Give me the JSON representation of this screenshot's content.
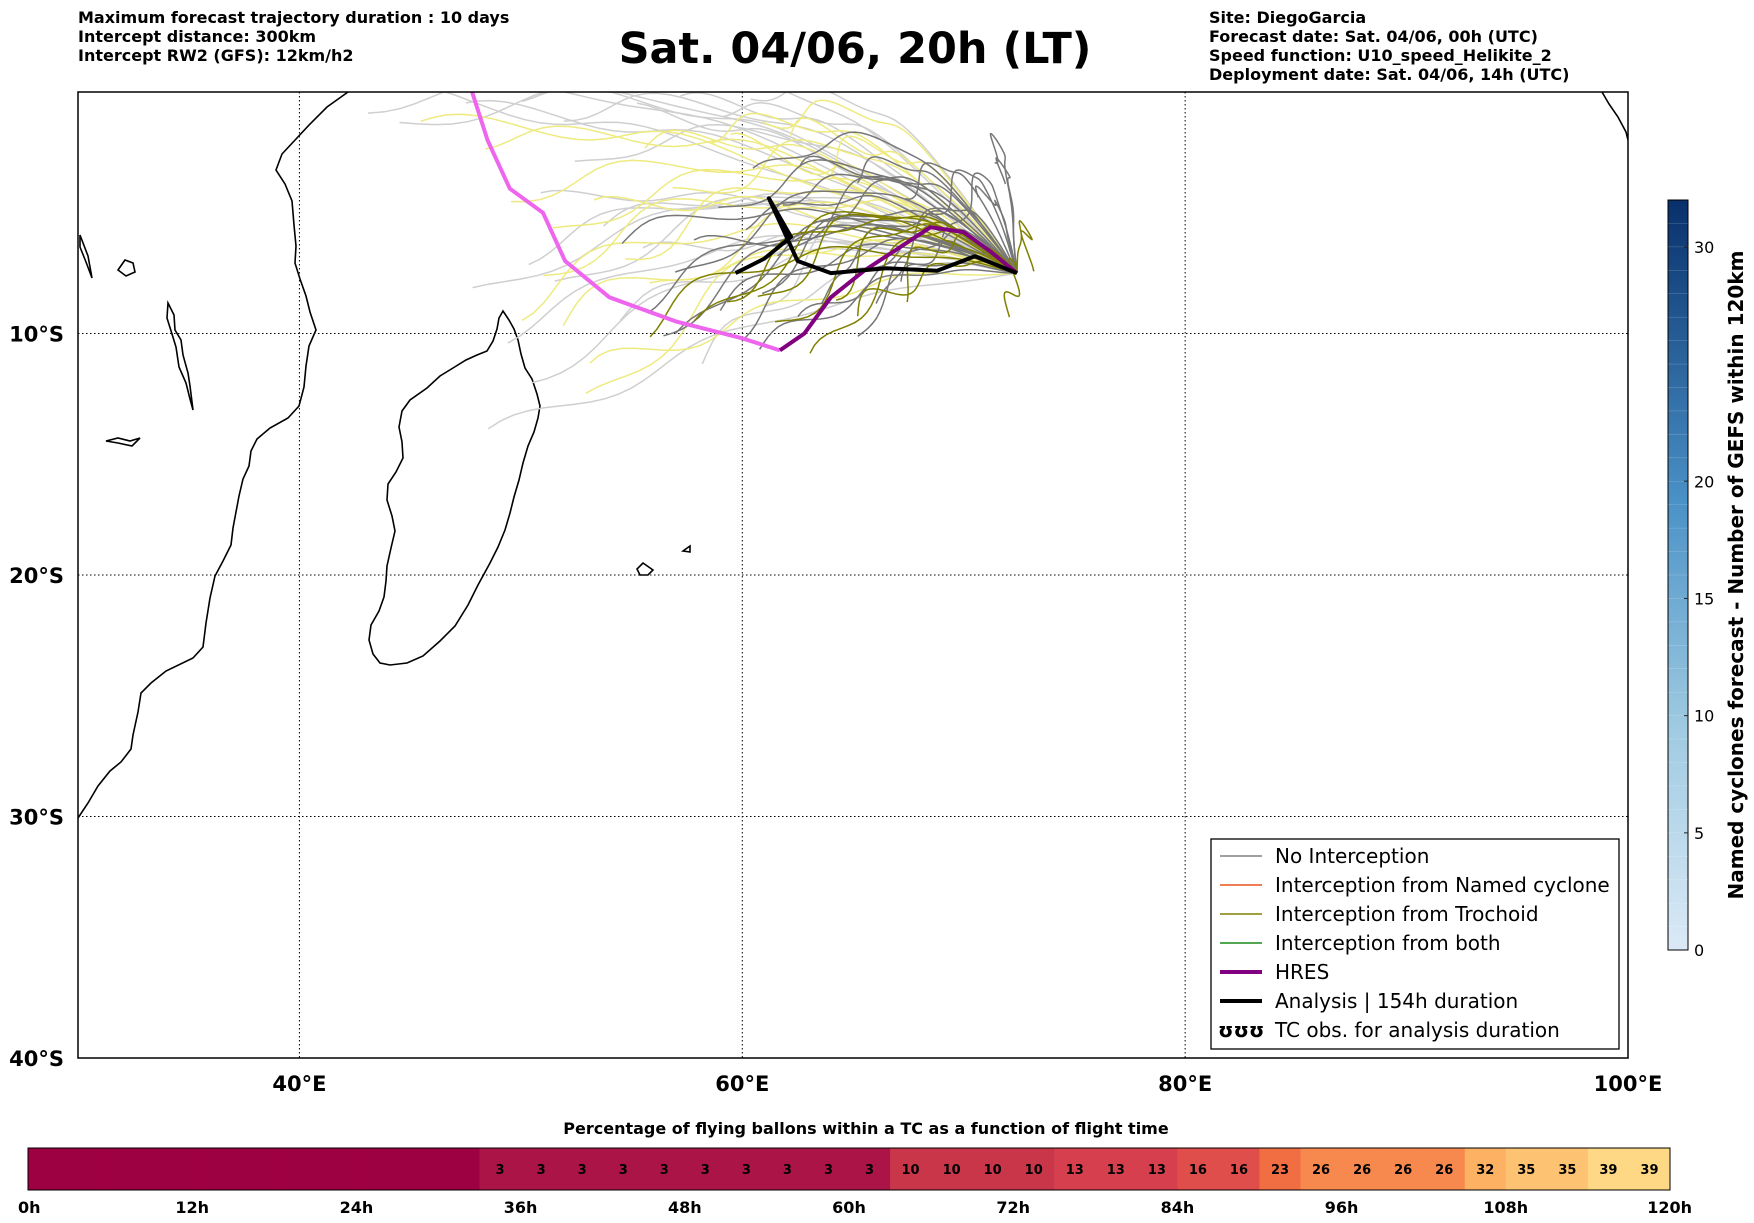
{
  "header": {
    "left": [
      "Maximum forecast trajectory duration : 10 days",
      "Intercept distance: 300km",
      "Intercept RW2 (GFS):  12km/h2"
    ],
    "title": "Sat. 04/06, 20h (LT)",
    "right": [
      "Site: DiegoGarcia",
      "Forecast date: Sat. 04/06, 00h (UTC)",
      "Speed function: U10_speed_Helikite_2",
      "Deployment date: Sat. 04/06, 14h (UTC)"
    ]
  },
  "chart_data": {
    "type": "map",
    "lon_range": [
      30,
      100
    ],
    "lat_range": [
      -40,
      0
    ],
    "x_ticks": [
      {
        "lon": 40,
        "label": "40°E"
      },
      {
        "lon": 60,
        "label": "60°E"
      },
      {
        "lon": 80,
        "label": "80°E"
      },
      {
        "lon": 100,
        "label": "100°E"
      }
    ],
    "y_ticks": [
      {
        "lat": -10,
        "label": "10°S"
      },
      {
        "lat": -20,
        "label": "20°S"
      },
      {
        "lat": -30,
        "label": "30°S"
      },
      {
        "lat": -40,
        "label": "40°S"
      }
    ],
    "grid": true,
    "legend": {
      "placement": "lower-right",
      "entries": [
        {
          "label": "No Interception",
          "color": "#808080",
          "style": "thin"
        },
        {
          "label": "Interception from Named cyclone",
          "color": "#e8531b",
          "style": "thin"
        },
        {
          "label": "Interception from Trochoid",
          "color": "#808000",
          "style": "thin"
        },
        {
          "label": "Interception from both",
          "color": "#1a8a1a",
          "style": "thin"
        },
        {
          "label": "HRES",
          "color": "#800080",
          "style": "thick"
        },
        {
          "label": "Analysis | 154h duration",
          "color": "#000000",
          "style": "thick"
        },
        {
          "label": "TC obs. for analysis duration",
          "color": "#000000",
          "style": "symbol"
        }
      ]
    },
    "hres_track": {
      "color_plotted": "#800080",
      "color_extension": "#ee66ee",
      "points_lonlat": [
        [
          72.4,
          -7.5
        ],
        [
          71.2,
          -6.6
        ],
        [
          70,
          -5.8
        ],
        [
          68.5,
          -5.6
        ],
        [
          67,
          -6.5
        ],
        [
          65.5,
          -7.4
        ],
        [
          64,
          -8.5
        ],
        [
          62.8,
          -10
        ],
        [
          61.7,
          -10.7
        ],
        [
          60,
          -10.2
        ],
        [
          57,
          -9.5
        ],
        [
          54,
          -8.5
        ],
        [
          52,
          -7
        ],
        [
          51,
          -5
        ],
        [
          49.5,
          -4
        ],
        [
          48.5,
          -2
        ],
        [
          47.8,
          0
        ]
      ]
    },
    "analysis_track": {
      "color": "#000000",
      "points_lonlat": [
        [
          72.4,
          -7.5
        ],
        [
          70.5,
          -6.8
        ],
        [
          68.8,
          -7.4
        ],
        [
          66.5,
          -7.3
        ],
        [
          64,
          -7.5
        ],
        [
          62.5,
          -7.0
        ],
        [
          61.2,
          -4.4
        ],
        [
          62.2,
          -6.0
        ],
        [
          61,
          -6.9
        ],
        [
          59.7,
          -7.5
        ]
      ]
    },
    "ensemble_tracks": {
      "no_interception_color": "#777777",
      "trochoid_color": "#808000",
      "far_color": "#cfcfcf",
      "yellow_color": "#eeea80"
    },
    "cyclone_colorbar": {
      "label": "Named cyclones forecast - Number of GEFS within 120km",
      "range": [
        0,
        32
      ],
      "ticks": [
        0,
        5,
        10,
        15,
        20,
        30
      ]
    }
  },
  "bottom_bar": {
    "title": "Percentage of flying ballons within a TC as a function of flight time",
    "cells": [
      {
        "pct": null,
        "color": "#9e0142"
      },
      {
        "pct": null,
        "color": "#9e0142"
      },
      {
        "pct": null,
        "color": "#9e0142"
      },
      {
        "pct": null,
        "color": "#9e0142"
      },
      {
        "pct": null,
        "color": "#9e0142"
      },
      {
        "pct": null,
        "color": "#9e0142"
      },
      {
        "pct": null,
        "color": "#9e0142"
      },
      {
        "pct": null,
        "color": "#9e0142"
      },
      {
        "pct": null,
        "color": "#9e0142"
      },
      {
        "pct": null,
        "color": "#9e0142"
      },
      {
        "pct": null,
        "color": "#9e0142"
      },
      {
        "pct": "3",
        "color": "#ab1446"
      },
      {
        "pct": "3",
        "color": "#ab1446"
      },
      {
        "pct": "3",
        "color": "#ab1446"
      },
      {
        "pct": "3",
        "color": "#ab1446"
      },
      {
        "pct": "3",
        "color": "#ab1446"
      },
      {
        "pct": "3",
        "color": "#ab1446"
      },
      {
        "pct": "3",
        "color": "#ab1446"
      },
      {
        "pct": "3",
        "color": "#ab1446"
      },
      {
        "pct": "3",
        "color": "#ab1446"
      },
      {
        "pct": "3",
        "color": "#ab1446"
      },
      {
        "pct": "10",
        "color": "#c9364a"
      },
      {
        "pct": "10",
        "color": "#c9364a"
      },
      {
        "pct": "10",
        "color": "#c9364a"
      },
      {
        "pct": "10",
        "color": "#c9364a"
      },
      {
        "pct": "13",
        "color": "#d6404e"
      },
      {
        "pct": "13",
        "color": "#d6404e"
      },
      {
        "pct": "13",
        "color": "#d6404e"
      },
      {
        "pct": "16",
        "color": "#df4e4b"
      },
      {
        "pct": "16",
        "color": "#df4e4b"
      },
      {
        "pct": "23",
        "color": "#f16e43"
      },
      {
        "pct": "26",
        "color": "#f7894f"
      },
      {
        "pct": "26",
        "color": "#f7894f"
      },
      {
        "pct": "26",
        "color": "#f7894f"
      },
      {
        "pct": "26",
        "color": "#f7894f"
      },
      {
        "pct": "32",
        "color": "#fcb163"
      },
      {
        "pct": "35",
        "color": "#fdc372"
      },
      {
        "pct": "35",
        "color": "#fdc372"
      },
      {
        "pct": "39",
        "color": "#fed884"
      },
      {
        "pct": "39",
        "color": "#fed884"
      }
    ],
    "time_ticks": [
      "0h",
      "12h",
      "24h",
      "36h",
      "48h",
      "60h",
      "72h",
      "84h",
      "96h",
      "108h",
      "120h"
    ]
  }
}
